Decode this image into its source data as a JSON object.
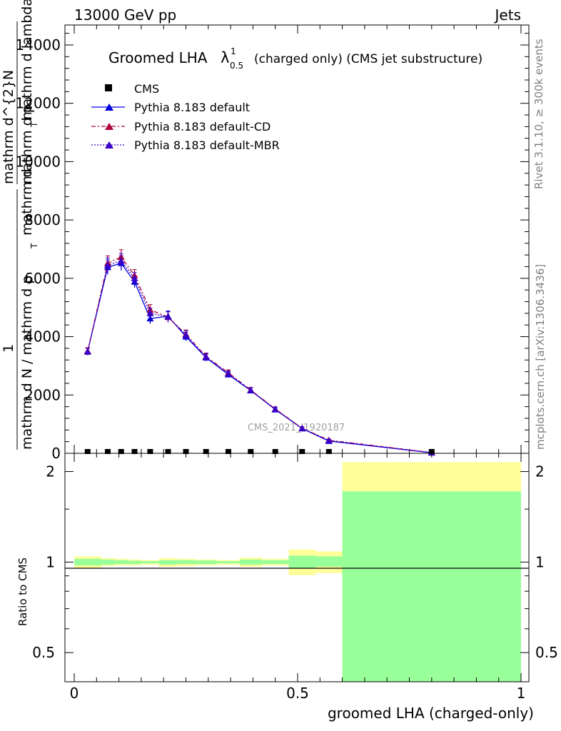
{
  "header": {
    "energy": "13000 GeV pp",
    "process": "Jets"
  },
  "side_labels": {
    "rivet": "Rivet 3.1.10, ≥ 300k events",
    "mcplots": "mcplots.cern.ch [arXiv:1306.3436]"
  },
  "colors": {
    "cms": "#000000",
    "default": "#0000dd",
    "cd": "#b0003a",
    "mbr": "#3a00c8",
    "band_yellow": "#ffff99",
    "band_green": "#99ff99"
  },
  "chart_data": {
    "type": "line",
    "title": "Groomed LHA",
    "title_symbol": "λ",
    "title_sup": "1",
    "title_sub": "0.5",
    "title_suffix": "(charged only) (CMS jet substructure)",
    "ylabel_parts": [
      "1",
      "mathrm d N / mathrm d p",
      "T",
      "mathrm d",
      "mathrm d^{2}N",
      "mathrm d p",
      "T",
      "mathrm d lambda"
    ],
    "ylabel_main": "1 / mathrm d N / mathrm d p_T mathrm d ... mathrm d^2 N / mathrm d p_T mathrm d lambda",
    "xlabel": "groomed LHA (charged-only)",
    "watermark": "CMS_2021_I1920187",
    "xlim": [
      0,
      1
    ],
    "ylim": [
      0,
      14000
    ],
    "y_ticks": [
      0,
      2000,
      4000,
      6000,
      8000,
      10000,
      12000,
      14000
    ],
    "y_tick_labels": [
      "0",
      "2000",
      "4000",
      "6000",
      "8000",
      "10000",
      "12000",
      "14000"
    ],
    "x_ticks": [
      0,
      0.5,
      1
    ],
    "x_tick_labels": [
      "0",
      "0.5",
      "1"
    ],
    "legend": [
      "CMS",
      "Pythia 8.183 default",
      "Pythia 8.183 default-CD",
      "Pythia 8.183 default-MBR"
    ],
    "cms": {
      "x": [
        0.03,
        0.075,
        0.105,
        0.135,
        0.17,
        0.21,
        0.25,
        0.295,
        0.345,
        0.395,
        0.45,
        0.51,
        0.57,
        0.8
      ],
      "y": [
        0,
        0,
        0,
        0,
        0,
        0,
        0,
        0,
        0,
        0,
        0,
        0,
        0,
        0
      ]
    },
    "series": [
      {
        "name": "Pythia 8.183 default",
        "x": [
          0.03,
          0.075,
          0.105,
          0.135,
          0.17,
          0.21,
          0.25,
          0.295,
          0.345,
          0.395,
          0.45,
          0.51,
          0.57,
          0.8
        ],
        "y": [
          3500,
          6380,
          6520,
          5880,
          4620,
          4700,
          4000,
          3280,
          2700,
          2150,
          1500,
          850,
          420,
          20
        ],
        "err": [
          120,
          250,
          250,
          200,
          180,
          180,
          150,
          120,
          100,
          90,
          70,
          50,
          40,
          10
        ]
      },
      {
        "name": "Pythia 8.183 default-CD",
        "x": [
          0.03,
          0.075,
          0.105,
          0.135,
          0.17,
          0.21,
          0.25,
          0.295,
          0.345,
          0.395,
          0.45,
          0.51,
          0.57,
          0.8
        ],
        "y": [
          3500,
          6520,
          6730,
          6100,
          4920,
          4670,
          4080,
          3320,
          2760,
          2170,
          1520,
          860,
          450,
          25
        ],
        "err": [
          120,
          250,
          250,
          200,
          180,
          180,
          150,
          120,
          100,
          90,
          70,
          50,
          40,
          10
        ]
      },
      {
        "name": "Pythia 8.183 default-MBR",
        "x": [
          0.03,
          0.075,
          0.105,
          0.135,
          0.17,
          0.21,
          0.25,
          0.295,
          0.345,
          0.395,
          0.45,
          0.51,
          0.57,
          0.8
        ],
        "y": [
          3480,
          6450,
          6600,
          6000,
          4800,
          4680,
          4050,
          3300,
          2730,
          2160,
          1510,
          855,
          435,
          22
        ],
        "err": [
          120,
          250,
          250,
          200,
          180,
          180,
          150,
          120,
          100,
          90,
          70,
          50,
          40,
          10
        ]
      }
    ],
    "ratio": {
      "ylabel": "Ratio to CMS",
      "ylim": [
        0.4,
        2.3
      ],
      "y_ticks": [
        0.5,
        1,
        2
      ],
      "y_tick_labels": [
        "0.5",
        "1",
        "2"
      ],
      "bins": [
        {
          "lo": 0.0,
          "hi": 0.06,
          "y_lo": 0.955,
          "y_hi": 1.045,
          "g_lo": 0.975,
          "g_hi": 1.025
        },
        {
          "lo": 0.06,
          "hi": 0.09,
          "y_lo": 0.97,
          "y_hi": 1.03,
          "g_lo": 0.98,
          "g_hi": 1.02
        },
        {
          "lo": 0.09,
          "hi": 0.12,
          "y_lo": 0.975,
          "y_hi": 1.025,
          "g_lo": 0.985,
          "g_hi": 1.015
        },
        {
          "lo": 0.12,
          "hi": 0.15,
          "y_lo": 0.975,
          "y_hi": 1.02,
          "g_lo": 0.985,
          "g_hi": 1.01
        },
        {
          "lo": 0.15,
          "hi": 0.19,
          "y_lo": 0.98,
          "y_hi": 1.015,
          "g_lo": 0.99,
          "g_hi": 1.008
        },
        {
          "lo": 0.19,
          "hi": 0.23,
          "y_lo": 0.965,
          "y_hi": 1.03,
          "g_lo": 0.98,
          "g_hi": 1.015
        },
        {
          "lo": 0.23,
          "hi": 0.27,
          "y_lo": 0.97,
          "y_hi": 1.025,
          "g_lo": 0.985,
          "g_hi": 1.015
        },
        {
          "lo": 0.27,
          "hi": 0.32,
          "y_lo": 0.975,
          "y_hi": 1.02,
          "g_lo": 0.985,
          "g_hi": 1.012
        },
        {
          "lo": 0.32,
          "hi": 0.37,
          "y_lo": 0.98,
          "y_hi": 1.015,
          "g_lo": 0.99,
          "g_hi": 1.008
        },
        {
          "lo": 0.37,
          "hi": 0.42,
          "y_lo": 0.965,
          "y_hi": 1.035,
          "g_lo": 0.98,
          "g_hi": 1.02
        },
        {
          "lo": 0.42,
          "hi": 0.48,
          "y_lo": 0.975,
          "y_hi": 1.025,
          "g_lo": 0.985,
          "g_hi": 1.015
        },
        {
          "lo": 0.48,
          "hi": 0.54,
          "y_lo": 0.905,
          "y_hi": 1.1,
          "g_lo": 0.955,
          "g_hi": 1.05
        },
        {
          "lo": 0.54,
          "hi": 0.6,
          "y_lo": 0.92,
          "y_hi": 1.085,
          "g_lo": 0.965,
          "g_hi": 1.045
        },
        {
          "lo": 0.6,
          "hi": 1.0,
          "y_lo": 0.4,
          "y_hi": 2.15,
          "g_lo": 0.4,
          "g_hi": 1.72
        }
      ]
    }
  }
}
